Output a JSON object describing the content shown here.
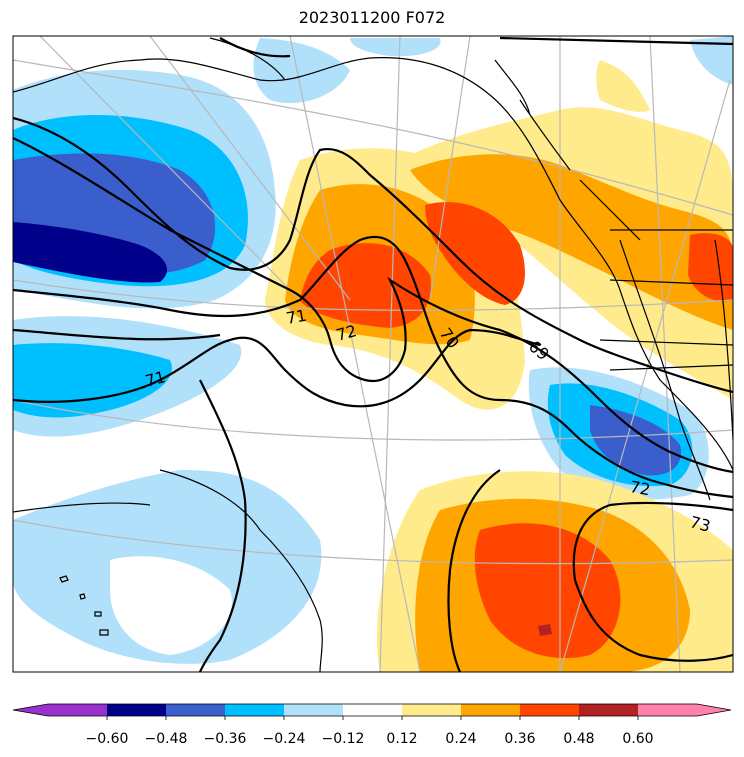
{
  "title": "2023011200 F072",
  "colorbar": {
    "ticks": [
      "−0.60",
      "−0.48",
      "−0.36",
      "−0.24",
      "−0.12",
      "0.12",
      "0.24",
      "0.36",
      "0.48",
      "0.60"
    ],
    "colors": [
      "#9932cc",
      "#00008b",
      "#3a5fcd",
      "#00bfff",
      "#b0e0fa",
      "#ffffff",
      "#ffeb8c",
      "#ffa500",
      "#ff4500",
      "#b22222",
      "#ff82ab"
    ]
  },
  "contour_labels": [
    "71",
    "72",
    "70",
    "69",
    "71",
    "72",
    "73"
  ]
}
